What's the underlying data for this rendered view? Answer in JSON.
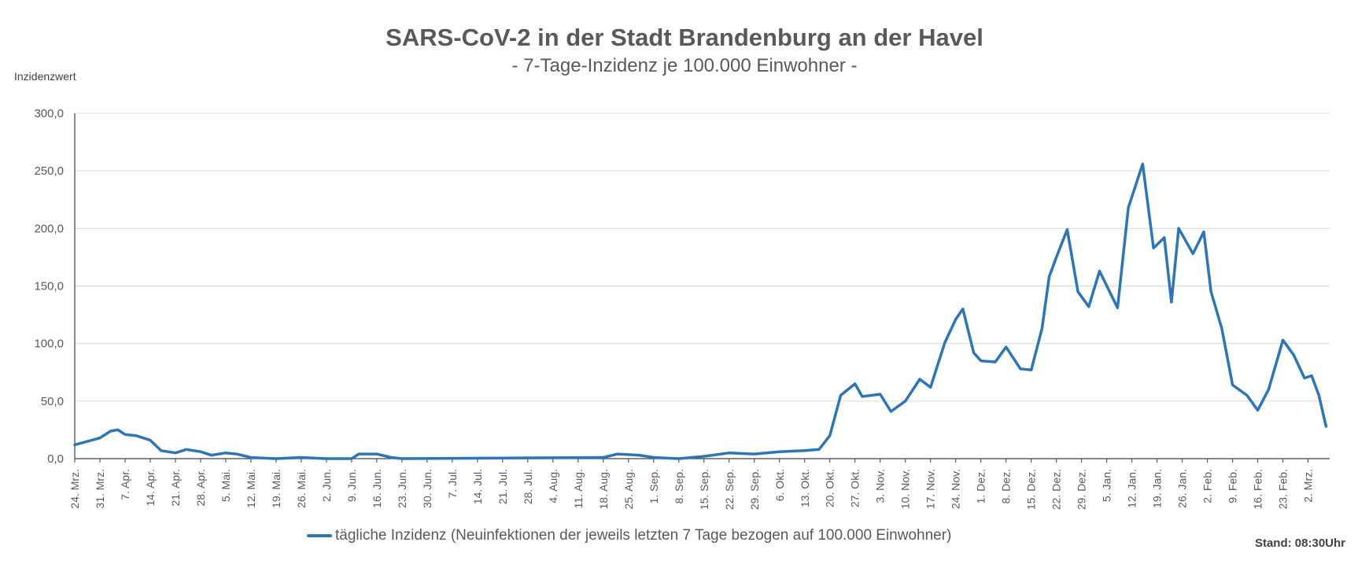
{
  "chart_data": {
    "type": "line",
    "title": "SARS-CoV-2 in der Stadt Brandenburg an der Havel",
    "subtitle": "- 7-Tage-Inzidenz je 100.000 Einwohner -",
    "ylabel": "Inzidenzwert",
    "ylim": [
      0,
      300
    ],
    "y_ticks": [
      "0,0",
      "50,0",
      "100,0",
      "150,0",
      "200,0",
      "250,0",
      "300,0"
    ],
    "x_tick_labels": [
      "24. Mrz.",
      "31. Mrz.",
      "7. Apr.",
      "14. Apr.",
      "21. Apr.",
      "28. Apr.",
      "5. Mai.",
      "12. Mai.",
      "19. Mai.",
      "26. Mai.",
      "2. Jun.",
      "9. Jun.",
      "16. Jun.",
      "23. Jun.",
      "30. Jun.",
      "7. Jul.",
      "14. Jul.",
      "21. Jul.",
      "28. Jul.",
      "4. Aug.",
      "11. Aug.",
      "18. Aug.",
      "25. Aug.",
      "1. Sep.",
      "8. Sep.",
      "15. Sep.",
      "22. Sep.",
      "29. Sep.",
      "6. Okt.",
      "13. Okt.",
      "20. Okt.",
      "27. Okt.",
      "3. Nov.",
      "10. Nov.",
      "17. Nov.",
      "24. Nov.",
      "1. Dez.",
      "8. Dez.",
      "15. Dez.",
      "22. Dez.",
      "29. Dez.",
      "5. Jan.",
      "12. Jan.",
      "19. Jan.",
      "26. Jan.",
      "2. Feb.",
      "9. Feb.",
      "16. Feb.",
      "23. Feb.",
      "2. Mrz."
    ],
    "grid": true,
    "legend_position": "bottom",
    "series": [
      {
        "name": "tägliche Inzidenz (Neuinfektionen der jeweils letzten 7 Tage bezogen auf 100.000 Einwohner)",
        "color": "#2e75b6",
        "points": [
          [
            "24. Mrz.",
            12
          ],
          [
            "31. Mrz.",
            18
          ],
          [
            "3. Apr.",
            24
          ],
          [
            "5. Apr.",
            25
          ],
          [
            "7. Apr.",
            21
          ],
          [
            "10. Apr.",
            20
          ],
          [
            "14. Apr.",
            16
          ],
          [
            "17. Apr.",
            7
          ],
          [
            "21. Apr.",
            5
          ],
          [
            "24. Apr.",
            8
          ],
          [
            "28. Apr.",
            6
          ],
          [
            "1. Mai.",
            3
          ],
          [
            "5. Mai.",
            5
          ],
          [
            "8. Mai.",
            4
          ],
          [
            "12. Mai.",
            1
          ],
          [
            "19. Mai.",
            0
          ],
          [
            "26. Mai.",
            1
          ],
          [
            "2. Jun.",
            0
          ],
          [
            "9. Jun.",
            0
          ],
          [
            "11. Jun.",
            4
          ],
          [
            "16. Jun.",
            4
          ],
          [
            "20. Jun.",
            1
          ],
          [
            "23. Jun.",
            0
          ],
          [
            "18. Aug.",
            1
          ],
          [
            "22. Aug.",
            4
          ],
          [
            "28. Aug.",
            3
          ],
          [
            "1. Sep.",
            1
          ],
          [
            "8. Sep.",
            0
          ],
          [
            "15. Sep.",
            2
          ],
          [
            "22. Sep.",
            5
          ],
          [
            "29. Sep.",
            4
          ],
          [
            "6. Okt.",
            6
          ],
          [
            "13. Okt.",
            7
          ],
          [
            "17. Okt.",
            8
          ],
          [
            "20. Okt.",
            20
          ],
          [
            "23. Okt.",
            55
          ],
          [
            "27. Okt.",
            65
          ],
          [
            "29. Okt.",
            54
          ],
          [
            "3. Nov.",
            56
          ],
          [
            "6. Nov.",
            41
          ],
          [
            "10. Nov.",
            50
          ],
          [
            "14. Nov.",
            69
          ],
          [
            "17. Nov.",
            62
          ],
          [
            "21. Nov.",
            101
          ],
          [
            "24. Nov.",
            121
          ],
          [
            "26. Nov.",
            130
          ],
          [
            "29. Nov.",
            92
          ],
          [
            "1. Dez.",
            85
          ],
          [
            "5. Dez.",
            84
          ],
          [
            "8. Dez.",
            97
          ],
          [
            "12. Dez.",
            78
          ],
          [
            "15. Dez.",
            77
          ],
          [
            "18. Dez.",
            113
          ],
          [
            "20. Dez.",
            158
          ],
          [
            "22. Dez.",
            175
          ],
          [
            "25. Dez.",
            199
          ],
          [
            "28. Dez.",
            145
          ],
          [
            "31. Dez.",
            132
          ],
          [
            "3. Jan.",
            163
          ],
          [
            "8. Jan.",
            131
          ],
          [
            "11. Jan.",
            218
          ],
          [
            "15. Jan.",
            256
          ],
          [
            "18. Jan.",
            183
          ],
          [
            "21. Jan.",
            192
          ],
          [
            "23. Jan.",
            136
          ],
          [
            "25. Jan.",
            200
          ],
          [
            "29. Jan.",
            178
          ],
          [
            "1. Feb.",
            197
          ],
          [
            "3. Feb.",
            145
          ],
          [
            "6. Feb.",
            113
          ],
          [
            "9. Feb.",
            64
          ],
          [
            "13. Feb.",
            55
          ],
          [
            "16. Feb.",
            42
          ],
          [
            "19. Feb.",
            60
          ],
          [
            "23. Feb.",
            103
          ],
          [
            "26. Feb.",
            90
          ],
          [
            "1. Mrz.",
            70
          ],
          [
            "3. Mrz.",
            72
          ],
          [
            "5. Mrz.",
            55
          ],
          [
            "7. Mrz.",
            28
          ]
        ]
      }
    ]
  },
  "legend": {
    "label": "tägliche Inzidenz (Neuinfektionen der jeweils letzten 7 Tage bezogen auf 100.000 Einwohner)"
  },
  "footer": {
    "timestamp": "Stand: 08:30Uhr"
  }
}
